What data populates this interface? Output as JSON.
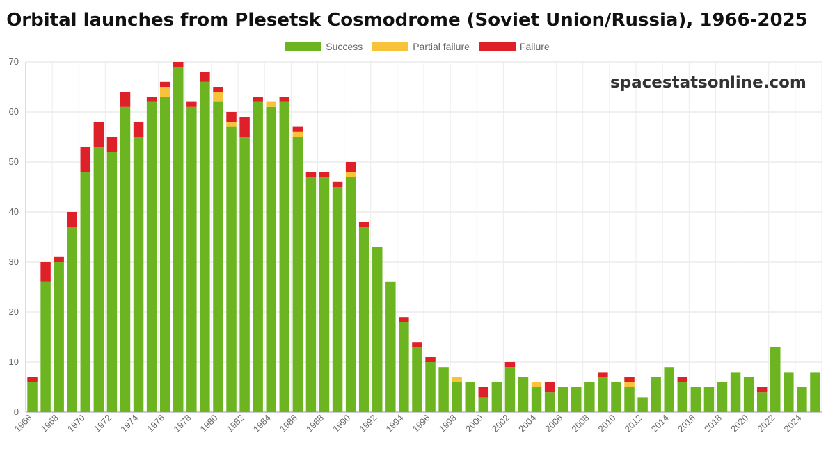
{
  "title": "Orbital launches from Plesetsk Cosmodrome (Soviet Union/Russia), 1966-2025",
  "watermark": "spacestatsonline.com",
  "colors": {
    "success": "#6cb520",
    "partial": "#f8c33a",
    "failure": "#de2028"
  },
  "chart_data": {
    "type": "bar",
    "stacked": true,
    "ylim": [
      0,
      70
    ],
    "yticks": [
      0,
      10,
      20,
      30,
      40,
      50,
      60,
      70
    ],
    "grid": true,
    "legend_position": "top-center",
    "categories": [
      "1966",
      "1967",
      "1968",
      "1969",
      "1970",
      "1971",
      "1972",
      "1973",
      "1974",
      "1975",
      "1976",
      "1977",
      "1978",
      "1979",
      "1980",
      "1981",
      "1982",
      "1983",
      "1984",
      "1985",
      "1986",
      "1987",
      "1988",
      "1989",
      "1990",
      "1991",
      "1992",
      "1993",
      "1994",
      "1995",
      "1996",
      "1997",
      "1998",
      "1999",
      "2000",
      "2001",
      "2002",
      "2003",
      "2004",
      "2005",
      "2006",
      "2007",
      "2008",
      "2009",
      "2010",
      "2011",
      "2012",
      "2013",
      "2014",
      "2015",
      "2016",
      "2017",
      "2018",
      "2019",
      "2020",
      "2021",
      "2022",
      "2023",
      "2024",
      "2025"
    ],
    "xtick_labels": [
      "1966",
      "1968",
      "1970",
      "1972",
      "1974",
      "1976",
      "1978",
      "1980",
      "1982",
      "1984",
      "1986",
      "1988",
      "1990",
      "1992",
      "1994",
      "1996",
      "1998",
      "2000",
      "2002",
      "2004",
      "2006",
      "2008",
      "2010",
      "2012",
      "2014",
      "2016",
      "2018",
      "2020",
      "2022",
      "2024"
    ],
    "series": [
      {
        "name": "Success",
        "color": "#6cb520",
        "values": [
          6,
          26,
          30,
          37,
          48,
          53,
          52,
          61,
          55,
          62,
          63,
          69,
          61,
          66,
          62,
          57,
          55,
          62,
          61,
          62,
          55,
          47,
          47,
          45,
          47,
          37,
          33,
          26,
          18,
          13,
          10,
          9,
          6,
          6,
          3,
          6,
          9,
          7,
          5,
          4,
          5,
          5,
          6,
          7,
          6,
          5,
          3,
          7,
          9,
          6,
          5,
          5,
          6,
          8,
          7,
          4,
          13,
          8,
          5,
          8
        ]
      },
      {
        "name": "Partial failure",
        "color": "#f8c33a",
        "values": [
          0,
          0,
          0,
          0,
          0,
          0,
          0,
          0,
          0,
          0,
          2,
          0,
          0,
          0,
          2,
          1,
          0,
          0,
          1,
          0,
          1,
          0,
          0,
          0,
          1,
          0,
          0,
          0,
          0,
          0,
          0,
          0,
          1,
          0,
          0,
          0,
          0,
          0,
          1,
          0,
          0,
          0,
          0,
          0,
          0,
          1,
          0,
          0,
          0,
          0,
          0,
          0,
          0,
          0,
          0,
          0,
          0,
          0,
          0,
          0
        ]
      },
      {
        "name": "Failure",
        "color": "#de2028",
        "values": [
          1,
          4,
          1,
          3,
          5,
          5,
          3,
          3,
          3,
          1,
          1,
          1,
          1,
          2,
          1,
          2,
          4,
          1,
          0,
          1,
          1,
          1,
          1,
          1,
          2,
          1,
          0,
          0,
          1,
          1,
          1,
          0,
          0,
          0,
          2,
          0,
          1,
          0,
          0,
          2,
          0,
          0,
          0,
          1,
          0,
          1,
          0,
          0,
          0,
          1,
          0,
          0,
          0,
          0,
          0,
          1,
          0,
          0,
          0,
          0
        ]
      }
    ]
  }
}
